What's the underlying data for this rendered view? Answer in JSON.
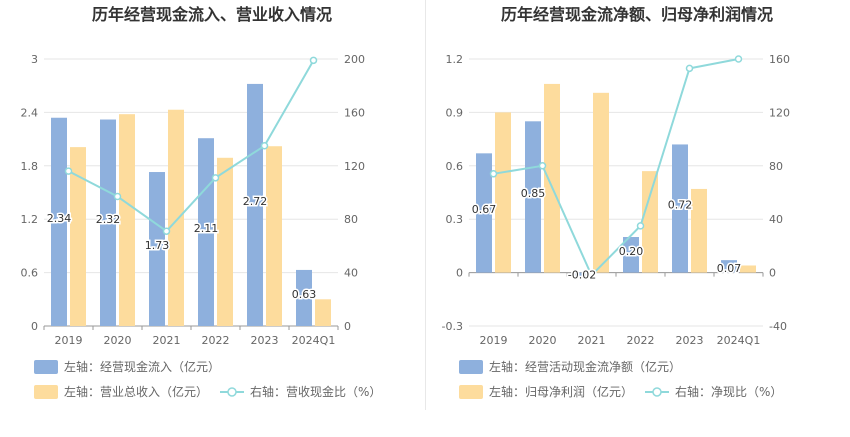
{
  "colors": {
    "bar_left": "#8eb0dd",
    "bar_right": "#fddc9d",
    "line": "#8fd9db",
    "grid": "#e6e6e6",
    "axis_text": "#666666",
    "title": "#333333",
    "legend_text": "#666666",
    "label_text": "#333333"
  },
  "chart_data": [
    {
      "type": "bar",
      "title": "历年经营现金流入、营业收入情况",
      "categories": [
        "2019",
        "2020",
        "2021",
        "2022",
        "2023",
        "2024Q1"
      ],
      "left_axis": {
        "ticks": [
          "0",
          "0.6",
          "1.2",
          "1.8",
          "2.4",
          "3"
        ],
        "ylim": [
          0,
          3
        ]
      },
      "right_axis": {
        "ticks": [
          "0",
          "40",
          "80",
          "120",
          "160",
          "200"
        ],
        "ylim": [
          0,
          200
        ]
      },
      "series": [
        {
          "name": "经营现金流入",
          "legend": "左轴：经营现金流入（亿元）",
          "type": "bar",
          "axis": "left",
          "values": [
            2.34,
            2.32,
            1.73,
            2.11,
            2.72,
            0.63
          ],
          "labels": [
            "2.34",
            "2.32",
            "1.73",
            "2.11",
            "2.72",
            "0.63"
          ]
        },
        {
          "name": "营业总收入",
          "legend": "左轴：营业总收入（亿元）",
          "type": "bar",
          "axis": "left",
          "values": [
            2.01,
            2.38,
            2.43,
            1.89,
            2.02,
            0.3
          ]
        },
        {
          "name": "营收现金比",
          "legend": "右轴：营收现金比（%）",
          "type": "line",
          "axis": "right",
          "values": [
            116,
            97,
            71,
            111,
            135,
            199
          ]
        }
      ]
    },
    {
      "type": "bar",
      "title": "历年经营现金流净额、归母净利润情况",
      "categories": [
        "2019",
        "2020",
        "2021",
        "2022",
        "2023",
        "2024Q1"
      ],
      "left_axis": {
        "ticks": [
          "-0.3",
          "0",
          "0.3",
          "0.6",
          "0.9",
          "1.2"
        ],
        "ylim": [
          -0.3,
          1.2
        ]
      },
      "right_axis": {
        "ticks": [
          "-40",
          "0",
          "40",
          "80",
          "120",
          "160"
        ],
        "ylim": [
          -40,
          160
        ]
      },
      "series": [
        {
          "name": "经营活动现金流净额",
          "legend": "左轴：经营活动现金流净额（亿元）",
          "type": "bar",
          "axis": "left",
          "values": [
            0.67,
            0.85,
            -0.02,
            0.2,
            0.72,
            0.07
          ],
          "labels": [
            "0.67",
            "0.85",
            "-0.02",
            "0.20",
            "0.72",
            "0.07"
          ]
        },
        {
          "name": "归母净利润",
          "legend": "左轴：归母净利润（亿元）",
          "type": "bar",
          "axis": "left",
          "values": [
            0.9,
            1.06,
            1.01,
            0.57,
            0.47,
            0.04
          ]
        },
        {
          "name": "净现比",
          "legend": "右轴：净现比（%）",
          "type": "line",
          "axis": "right",
          "values": [
            74,
            80,
            -2,
            35,
            153,
            160
          ]
        }
      ]
    }
  ]
}
